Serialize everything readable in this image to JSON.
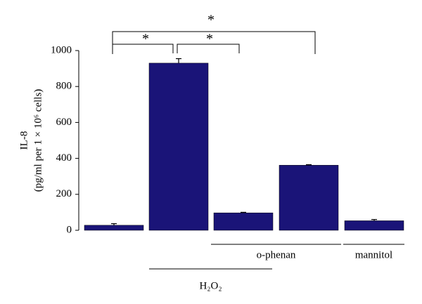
{
  "chart_data": {
    "type": "bar",
    "y_label_lines": [
      "IL-8",
      "(pg/ml per 1 × 10⁶ cells)"
    ],
    "categories": [
      null,
      null,
      null,
      null,
      null
    ],
    "values": [
      28,
      930,
      97,
      362,
      53
    ],
    "errors": [
      9,
      25,
      3,
      3,
      7
    ],
    "color": "#1a1478",
    "ylim": [
      0,
      1000
    ],
    "yticks": [
      0,
      200,
      400,
      600,
      800,
      1000
    ],
    "annotations": [
      "*",
      "*",
      "*"
    ],
    "groups": [
      "o-phenan",
      "mannitol",
      "H₂O₂"
    ]
  }
}
